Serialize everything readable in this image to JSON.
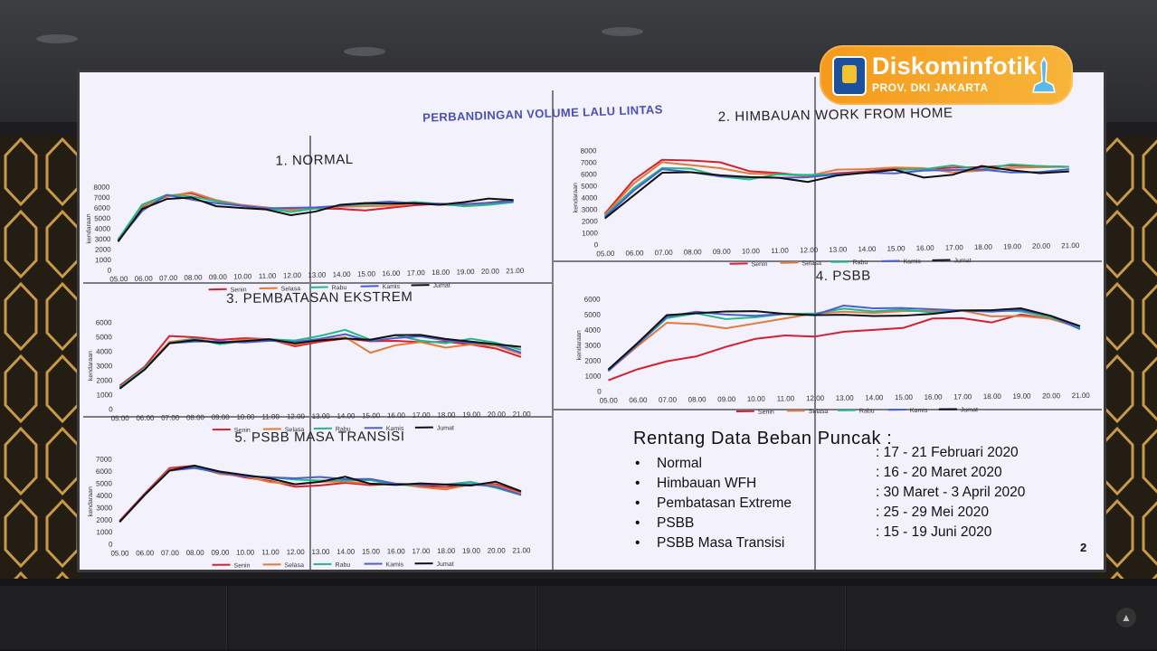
{
  "screen_title": "PERBANDINGAN VOLUME LALU LINTAS",
  "logo": {
    "name": "Diskominfotik",
    "subtitle": "PROV. DKI JAKARTA"
  },
  "info": {
    "title": "Rentang Data Beban Puncak :",
    "rows": [
      {
        "label": "Normal",
        "date": ": 17 - 21 Februari 2020"
      },
      {
        "label": "Himbauan WFH",
        "date": ": 16 - 20 Maret 2020"
      },
      {
        "label": "Pembatasan Extreme",
        "date": ": 30 Maret - 3 April 2020"
      },
      {
        "label": "PSBB",
        "date": ": 25 - 29 Mei 2020"
      },
      {
        "label": "PSBB Masa Transisi",
        "date": ": 15 - 19 Juni 2020"
      }
    ],
    "bullet": "•"
  },
  "page_number": "2",
  "colors": {
    "Senin": "#d62030",
    "Selasa": "#e07b3c",
    "Rabu": "#22b887",
    "Kamis": "#4a5fd0",
    "Jumat": "#111111"
  },
  "chart_data": [
    {
      "type": "line",
      "title": "1. NORMAL",
      "ylabel": "kendaraan",
      "x": [
        "05.00",
        "06.00",
        "07.00",
        "08.00",
        "09.00",
        "10.00",
        "11.00",
        "12.00",
        "13.00",
        "14.00",
        "15.00",
        "16.00",
        "17.00",
        "18.00",
        "19.00",
        "20.00",
        "21.00"
      ],
      "yticks": [
        0,
        1000,
        2000,
        3000,
        4000,
        5000,
        6000,
        7000,
        8000
      ],
      "ylim": [
        0,
        8000
      ],
      "series": [
        {
          "name": "Senin",
          "values": [
            2800,
            6000,
            7000,
            7200,
            6400,
            5900,
            5600,
            5500,
            5500,
            5400,
            5200,
            5400,
            5600,
            5700,
            5600,
            5700,
            5900
          ]
        },
        {
          "name": "Selasa",
          "values": [
            2900,
            6100,
            6900,
            7300,
            6500,
            6000,
            5700,
            5400,
            5500,
            5600,
            5600,
            5600,
            5800,
            5600,
            5500,
            5600,
            5800
          ]
        },
        {
          "name": "Rabu",
          "values": [
            2900,
            6200,
            7100,
            6900,
            6400,
            5900,
            5600,
            5200,
            5500,
            5700,
            5800,
            5800,
            5900,
            5700,
            5400,
            5500,
            5700
          ]
        },
        {
          "name": "Kamis",
          "values": [
            2800,
            5600,
            7100,
            6600,
            6200,
            5900,
            5600,
            5600,
            5600,
            5700,
            5900,
            6000,
            5800,
            5700,
            5600,
            5700,
            5800
          ]
        },
        {
          "name": "Jumat",
          "values": [
            2700,
            5800,
            6700,
            6800,
            5900,
            5700,
            5500,
            4900,
            5200,
            5800,
            5900,
            5800,
            5800,
            5600,
            5800,
            6100,
            5900
          ]
        }
      ],
      "legend": "bottom"
    },
    {
      "type": "line",
      "title": "2. HIMBAUAN WORK FROM HOME",
      "ylabel": "kendaraan",
      "x": [
        "05.00",
        "06.00",
        "07.00",
        "08.00",
        "09.00",
        "10.00",
        "11.00",
        "12.00",
        "13.00",
        "14.00",
        "15.00",
        "16.00",
        "17.00",
        "18.00",
        "19.00",
        "20.00",
        "21.00"
      ],
      "yticks": [
        0,
        1000,
        2000,
        3000,
        4000,
        5000,
        6000,
        7000,
        8000
      ],
      "ylim": [
        0,
        8000
      ],
      "series": [
        {
          "name": "Senin",
          "values": [
            2600,
            5400,
            7100,
            7000,
            6800,
            6000,
            5800,
            5500,
            5700,
            5800,
            6000,
            5900,
            6000,
            6000,
            6100,
            6000,
            5900
          ]
        },
        {
          "name": "Selasa",
          "values": [
            2500,
            5100,
            6900,
            6600,
            6300,
            5800,
            5700,
            5500,
            6000,
            6000,
            6100,
            6000,
            5600,
            5700,
            5900,
            5900,
            5900
          ]
        },
        {
          "name": "Rabu",
          "values": [
            2400,
            4700,
            6400,
            6300,
            5600,
            5300,
            5700,
            5600,
            5600,
            5700,
            5900,
            5900,
            6200,
            5800,
            6200,
            6000,
            5900
          ]
        },
        {
          "name": "Kamis",
          "values": [
            2300,
            4500,
            6300,
            6000,
            5600,
            5500,
            5400,
            5400,
            5600,
            5700,
            5600,
            5800,
            5800,
            5800,
            5500,
            5500,
            5700
          ]
        },
        {
          "name": "Jumat",
          "values": [
            2200,
            4100,
            6000,
            6000,
            5700,
            5500,
            5400,
            5000,
            5500,
            5700,
            5900,
            5200,
            5400,
            6100,
            5700,
            5400,
            5500
          ]
        }
      ],
      "legend": "bottom"
    },
    {
      "type": "line",
      "title": "3. PEMBATASAN EKSTREM",
      "ylabel": "kendaraan",
      "x": [
        "05.00",
        "06.00",
        "07.00",
        "08.00",
        "09.00",
        "10.00",
        "11.00",
        "12.00",
        "13.00",
        "14.00",
        "15.00",
        "16.00",
        "17.00",
        "18.00",
        "19.00",
        "20.00",
        "21.00"
      ],
      "yticks": [
        0,
        1000,
        2000,
        3000,
        4000,
        5000,
        6000
      ],
      "ylim": [
        0,
        6000
      ],
      "series": [
        {
          "name": "Senin",
          "values": [
            1600,
            2900,
            5000,
            4900,
            4700,
            4800,
            4700,
            4200,
            4500,
            4700,
            4500,
            4500,
            4400,
            4400,
            4200,
            3900,
            3300
          ]
        },
        {
          "name": "Selasa",
          "values": [
            1500,
            2800,
            4600,
            4800,
            4500,
            4700,
            4700,
            4300,
            4600,
            4800,
            3700,
            4200,
            4400,
            4000,
            4200,
            4100,
            3500
          ]
        },
        {
          "name": "Rabu",
          "values": [
            1500,
            2800,
            4500,
            4800,
            4400,
            4600,
            4700,
            4600,
            4900,
            5300,
            4600,
            4900,
            4500,
            4300,
            4600,
            4300,
            3800
          ]
        },
        {
          "name": "Kamis",
          "values": [
            1400,
            2700,
            4500,
            4600,
            4600,
            4500,
            4600,
            4500,
            4700,
            5000,
            4500,
            4700,
            4800,
            4500,
            4300,
            4200,
            3600
          ]
        },
        {
          "name": "Jumat",
          "values": [
            1400,
            2700,
            4500,
            4700,
            4500,
            4600,
            4700,
            4400,
            4600,
            4700,
            4600,
            4900,
            4900,
            4600,
            4400,
            4200,
            4000
          ]
        }
      ],
      "legend": "bottom"
    },
    {
      "type": "line",
      "title": "4. PSBB",
      "ylabel": "kendaraan",
      "x": [
        "05.00",
        "06.00",
        "07.00",
        "08.00",
        "09.00",
        "10.00",
        "11.00",
        "12.00",
        "13.00",
        "14.00",
        "15.00",
        "16.00",
        "17.00",
        "18.00",
        "19.00",
        "20.00",
        "21.00"
      ],
      "yticks": [
        0,
        1000,
        2000,
        3000,
        4000,
        5000,
        6000
      ],
      "ylim": [
        0,
        6000
      ],
      "series": [
        {
          "name": "Senin",
          "values": [
            700,
            1400,
            1900,
            2200,
            2800,
            3300,
            3500,
            3400,
            3700,
            3800,
            3900,
            4500,
            4500,
            4200,
            4700,
            4400,
            3800
          ]
        },
        {
          "name": "Selasa",
          "values": [
            1300,
            2900,
            4400,
            4300,
            4000,
            4300,
            4600,
            4900,
            5000,
            4900,
            5000,
            5000,
            5000,
            4600,
            4600,
            4400,
            3800
          ]
        },
        {
          "name": "Rabu",
          "values": [
            1300,
            3000,
            4700,
            5000,
            4600,
            4700,
            4900,
            4900,
            5200,
            5000,
            5100,
            4900,
            5000,
            5000,
            4900,
            4500,
            3800
          ]
        },
        {
          "name": "Kamis",
          "values": [
            1300,
            3000,
            4800,
            5100,
            4900,
            4800,
            4900,
            4800,
            5400,
            5200,
            5200,
            5100,
            5000,
            4900,
            5000,
            4600,
            3700
          ]
        },
        {
          "name": "Jumat",
          "values": [
            1400,
            3100,
            4900,
            5000,
            5100,
            5100,
            4900,
            4800,
            4800,
            4700,
            4700,
            4800,
            5000,
            5000,
            5100,
            4600,
            3900
          ]
        }
      ],
      "legend": "bottom"
    },
    {
      "type": "line",
      "title": "5. PSBB MASA TRANSISI",
      "ylabel": "kendaraan",
      "x": [
        "05.00",
        "06.00",
        "07.00",
        "08.00",
        "09.00",
        "10.00",
        "11.00",
        "12.00",
        "13.00",
        "14.00",
        "15.00",
        "16.00",
        "17.00",
        "18.00",
        "19.00",
        "20.00",
        "21.00"
      ],
      "yticks": [
        0,
        1000,
        2000,
        3000,
        4000,
        5000,
        6000,
        7000
      ],
      "ylim": [
        0,
        7000
      ],
      "series": [
        {
          "name": "Senin",
          "values": [
            1900,
            4100,
            6200,
            6400,
            5800,
            5400,
            5100,
            4600,
            4700,
            4900,
            4700,
            4800,
            4600,
            4500,
            4700,
            4700,
            4000
          ]
        },
        {
          "name": "Selasa",
          "values": [
            1800,
            4000,
            6100,
            6300,
            5700,
            5500,
            5000,
            4800,
            5000,
            5000,
            4800,
            4800,
            4500,
            4300,
            4700,
            4600,
            3900
          ]
        },
        {
          "name": "Rabu",
          "values": [
            1800,
            4000,
            6000,
            6300,
            5900,
            5500,
            5400,
            5200,
            5100,
            5100,
            5100,
            4700,
            4700,
            4700,
            4900,
            4400,
            3800
          ]
        },
        {
          "name": "Kamis",
          "values": [
            1800,
            4000,
            6000,
            6200,
            5800,
            5500,
            5400,
            5300,
            5400,
            5200,
            5200,
            4800,
            4700,
            4700,
            4700,
            4500,
            3800
          ]
        },
        {
          "name": "Jumat",
          "values": [
            1800,
            4000,
            6000,
            6400,
            5900,
            5600,
            5300,
            4800,
            5000,
            5400,
            4800,
            4700,
            4800,
            4700,
            4600,
            4900,
            4100
          ]
        }
      ],
      "legend": "bottom"
    }
  ]
}
